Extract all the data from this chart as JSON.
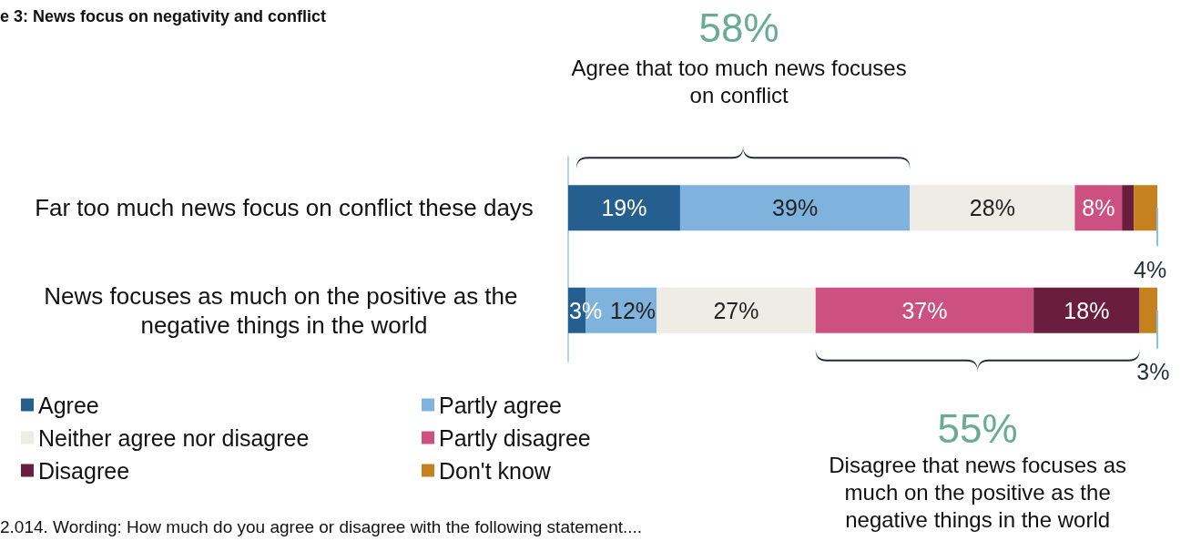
{
  "chart_data": {
    "type": "bar",
    "orientation": "horizontal",
    "stacked": true,
    "title": "e 3: News focus on negativity and conflict",
    "categories": [
      "Far too much news focus on conflict these days",
      "News focuses as much on the positive as the negative things in the world"
    ],
    "series": [
      {
        "name": "Agree",
        "color": "#245f8f",
        "values": [
          19,
          3
        ],
        "value_labels": [
          "19%",
          "3%"
        ]
      },
      {
        "name": "Partly agree",
        "color": "#7fb2dd",
        "values": [
          39,
          12
        ],
        "value_labels": [
          "39%",
          "12%"
        ]
      },
      {
        "name": "Neither agree nor disagree",
        "color": "#efebe5",
        "values": [
          28,
          27
        ],
        "value_labels": [
          "28%",
          "27%"
        ]
      },
      {
        "name": "Partly disagree",
        "color": "#cc5080",
        "values": [
          8,
          37
        ],
        "value_labels": [
          "8%",
          "37%"
        ]
      },
      {
        "name": "Disagree",
        "color": "#6a1e3f",
        "values": [
          2,
          18
        ],
        "value_labels": [
          null,
          "18%"
        ]
      },
      {
        "name": "Don't know",
        "color": "#c6811f",
        "values": [
          4,
          3
        ],
        "value_labels": [
          "4%",
          "3%"
        ]
      }
    ],
    "legend": "bottom left",
    "annotations": [
      "58%",
      "Agree that too much news focuses on conflict",
      "55%",
      "Disagree that news focuses as much on the positive as the negative things in the world",
      "2.014. Wording: How much do you agree or disagree with the following statement...."
    ]
  }
}
